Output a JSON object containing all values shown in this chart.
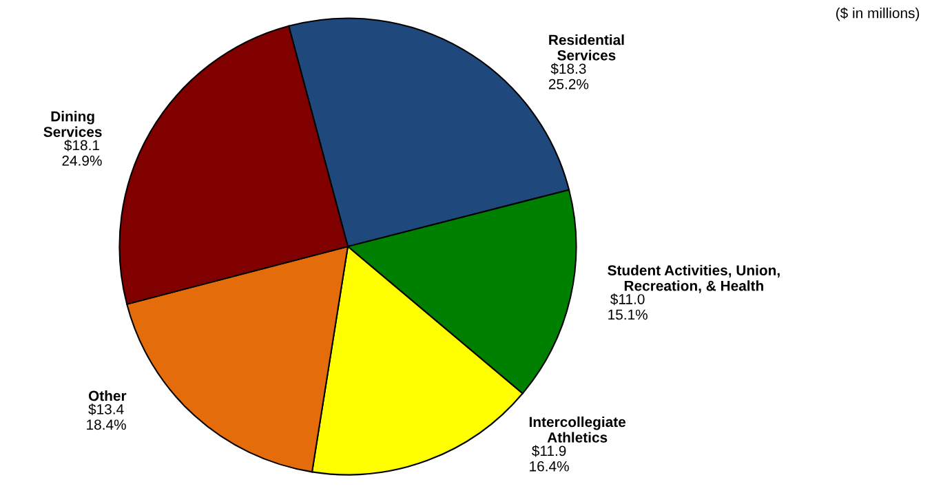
{
  "chart_data": {
    "type": "pie",
    "categories": [
      "Residential\nServices",
      "Student Activities, Union,\nRecreation, & Health",
      "Intercollegiate\nAthletics",
      "Other",
      "Dining\nServices"
    ],
    "values": [
      18.3,
      11.0,
      11.9,
      13.4,
      18.1
    ],
    "colors": [
      "#1f497d",
      "#008000",
      "#ffff00",
      "#e46c0a",
      "#800000"
    ],
    "value_labels": [
      "$18.3\n25.2%",
      "$11.0\n15.1%",
      "$11.9\n16.4%",
      "$13.4\n18.4%",
      "$18.1\n24.9%"
    ],
    "annotations": [
      "($ in millions)"
    ]
  }
}
